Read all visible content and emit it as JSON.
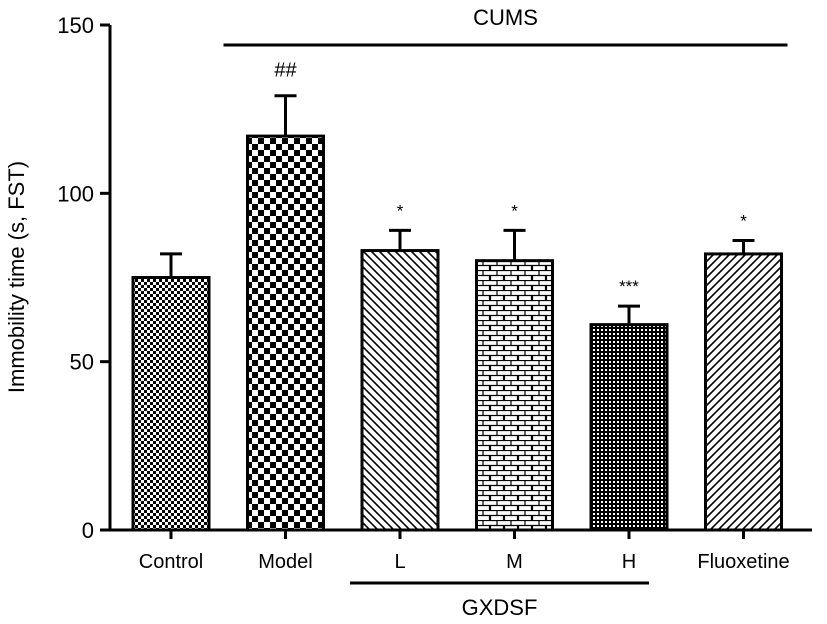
{
  "chart_data": {
    "type": "bar",
    "title": "",
    "xlabel": "",
    "ylabel": "Immobility time (s, FST)",
    "ylim": [
      0,
      150
    ],
    "yticks": [
      0,
      50,
      100,
      150
    ],
    "categories": [
      "Control",
      "Model",
      "L",
      "M",
      "H",
      "Fluoxetine"
    ],
    "values": [
      75,
      117,
      83,
      80,
      61,
      82
    ],
    "errors": [
      7,
      12,
      6,
      9,
      5.5,
      4
    ],
    "significance": [
      "",
      "##",
      "*",
      "*",
      "***",
      "*"
    ],
    "patterns": [
      "checker-fine",
      "checker-coarse",
      "diag-back",
      "brick",
      "dense-dots",
      "diag-forward"
    ],
    "groups": [
      {
        "label": "CUMS",
        "position": "top",
        "from": "Model",
        "to": "Fluoxetine"
      },
      {
        "label": "GXDSF",
        "position": "bottom",
        "from": "L",
        "to": "H"
      }
    ],
    "colors": {
      "bar_fill": "#ffffff",
      "stroke": "#000000"
    }
  }
}
